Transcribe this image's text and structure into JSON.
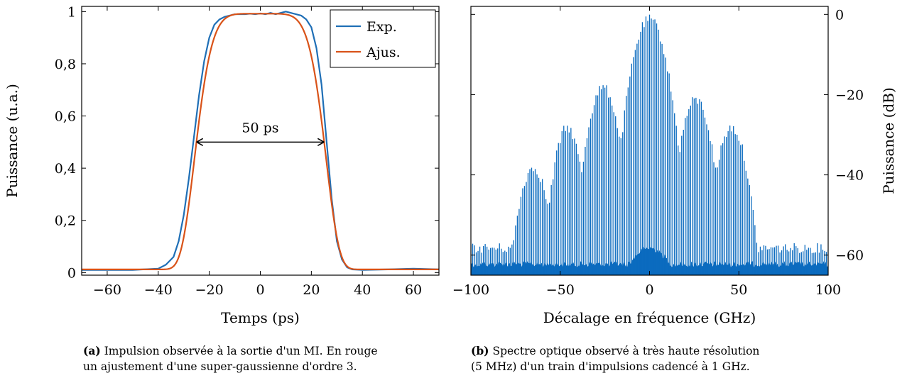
{
  "chart_data": [
    {
      "type": "line",
      "panel": "a",
      "xlabel": "Temps (ps)",
      "ylabel": "Puissance (u.a.)",
      "xlim": [
        -70,
        70
      ],
      "ylim": [
        -0.01,
        1.02
      ],
      "xticks": [
        -60,
        -40,
        -20,
        0,
        20,
        40,
        60
      ],
      "xtick_labels": [
        "−60",
        "−40",
        "−20",
        "0",
        "20",
        "40",
        "60"
      ],
      "yticks": [
        0,
        0.2,
        0.4,
        0.6,
        0.8,
        1
      ],
      "ytick_labels": [
        "0",
        "0,2",
        "0,4",
        "0,6",
        "0,8",
        "1"
      ],
      "legend_position": "top-right",
      "series": [
        {
          "name": "Exp.",
          "color": "#1f6fb6",
          "x": [
            -70,
            -50,
            -40,
            -37,
            -34,
            -32,
            -30,
            -28,
            -26,
            -24,
            -22,
            -20,
            -18,
            -16,
            -14,
            -12,
            -10,
            -8,
            -6,
            -4,
            -2,
            0,
            2,
            4,
            6,
            8,
            10,
            12,
            14,
            16,
            18,
            20,
            22,
            24,
            26,
            28,
            30,
            32,
            34,
            36,
            40,
            50,
            60,
            70
          ],
          "y": [
            0.01,
            0.01,
            0.015,
            0.03,
            0.06,
            0.12,
            0.22,
            0.36,
            0.52,
            0.68,
            0.81,
            0.9,
            0.95,
            0.97,
            0.98,
            0.985,
            0.99,
            0.99,
            0.99,
            0.992,
            0.99,
            0.993,
            0.99,
            0.995,
            0.99,
            0.995,
            1.0,
            0.995,
            0.99,
            0.985,
            0.97,
            0.94,
            0.86,
            0.72,
            0.5,
            0.28,
            0.12,
            0.05,
            0.02,
            0.012,
            0.01,
            0.012,
            0.015,
            0.012
          ]
        },
        {
          "name": "Ajus.",
          "color": "#d95319",
          "model": "super-gaussian",
          "order": 3,
          "fwhm": 50,
          "amplitude": 0.98,
          "offset": 0.012
        }
      ],
      "annotations": [
        {
          "text": "50 ps",
          "x_from": -25,
          "x_to": 25,
          "y": 0.5
        }
      ],
      "caption_tag": "(a)",
      "caption_text": "Impulsion observée à la sortie d'un MI. En rouge un ajustement d'une super-gaussienne d'ordre 3."
    },
    {
      "type": "bar",
      "panel": "b",
      "xlabel": "Décalage en fréquence (GHz)",
      "ylabel": "Puissance (dB)",
      "xlim": [
        -100,
        100
      ],
      "ylim": [
        -65,
        2
      ],
      "xticks": [
        -100,
        -50,
        0,
        50,
        100
      ],
      "xtick_labels": [
        "−100",
        "−50",
        "0",
        "50",
        "100"
      ],
      "yticks": [
        0,
        -20,
        -40,
        -60
      ],
      "ytick_labels": [
        "0",
        "−20",
        "−40",
        "−60"
      ],
      "color": "#0b6bbf",
      "line_spacing_ghz": 1,
      "floor_db": -61,
      "envelope_center_ghz": [
        -65,
        -46,
        -26,
        0,
        26,
        46
      ],
      "envelope_peak_db": [
        -37,
        -27,
        -17,
        0,
        -20,
        -27
      ],
      "caption_tag": "(b)",
      "caption_text": "Spectre optique observé à très haute résolution (5 MHz) d'un train d'impulsions cadencé à 1 GHz."
    }
  ],
  "captions": {
    "a_tag": "(a)",
    "a_line1": "Impulsion observée à la sortie d'un MI. En rouge",
    "a_line2": "un ajustement d'une super-gaussienne d'ordre 3.",
    "b_tag": "(b)",
    "b_line1": "Spectre optique observé à très haute résolution",
    "b_line2": "(5 MHz) d'un train d'impulsions cadencé à 1 GHz."
  }
}
